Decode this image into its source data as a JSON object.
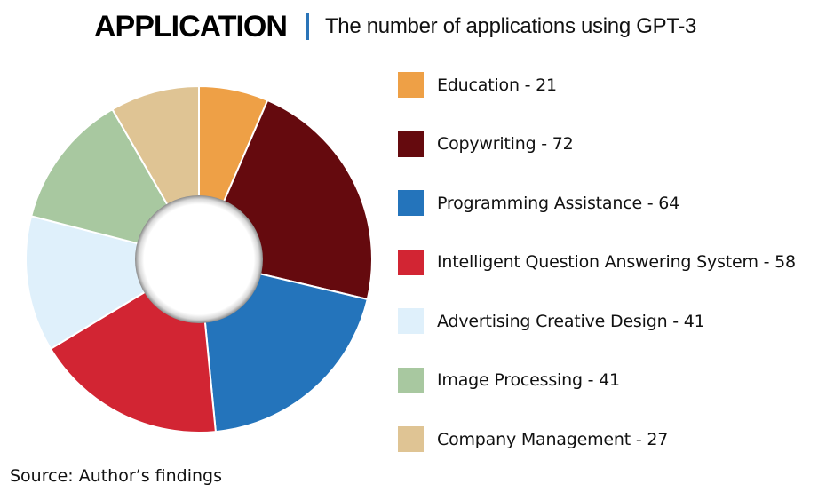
{
  "header": {
    "title": "APPLICATION",
    "subtitle": "The number of applications using GPT-3"
  },
  "source": "Source: Author’s findings",
  "colors": {
    "divider": "#2a74b8"
  },
  "chart_data": {
    "type": "pie",
    "variant": "donut",
    "legend_position": "right",
    "slices": [
      {
        "label": "Education - 21",
        "name": "Education",
        "value": 21,
        "color": "#eea046"
      },
      {
        "label": "Copywriting - 72",
        "name": "Copywriting",
        "value": 72,
        "color": "#650a0e"
      },
      {
        "label": "Programming Assistance - 64",
        "name": "Programming Assistance",
        "value": 64,
        "color": "#2474bb"
      },
      {
        "label": "Intelligent Question Answering System - 58",
        "name": "Intelligent Question Answering System",
        "value": 58,
        "color": "#d22533"
      },
      {
        "label": "Advertising Creative Design - 41",
        "name": "Advertising Creative Design",
        "value": 41,
        "color": "#dff0fb"
      },
      {
        "label": "Image Processing - 41",
        "name": "Image Processing",
        "value": 41,
        "color": "#a8c8a0"
      },
      {
        "label": "Company Management - 27",
        "name": "Company Management",
        "value": 27,
        "color": "#dfc494"
      }
    ]
  }
}
